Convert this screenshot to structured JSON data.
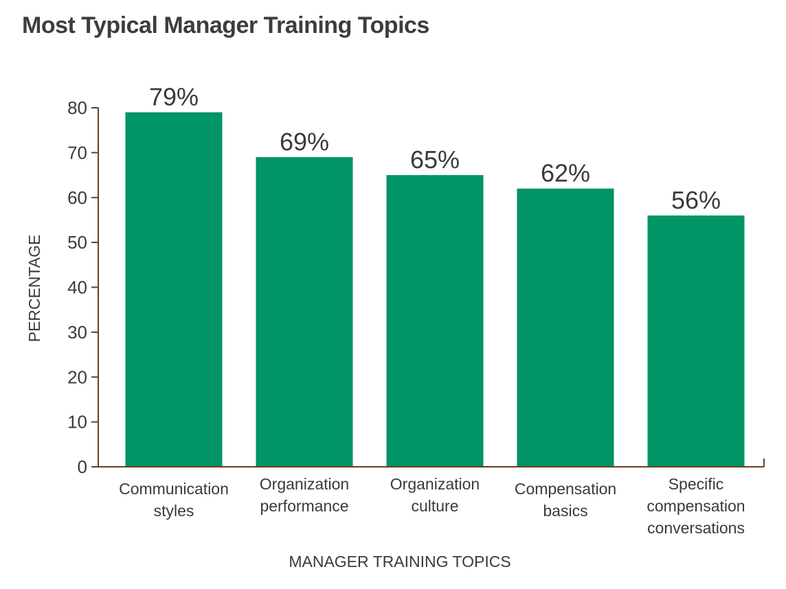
{
  "chart_data": {
    "type": "bar",
    "title": "Most Typical Manager Training Topics",
    "xlabel": "MANAGER TRAINING TOPICS",
    "ylabel": "PERCENTAGE",
    "categories": [
      [
        "Communication",
        "styles"
      ],
      [
        "Organization",
        "performance"
      ],
      [
        "Organization",
        "culture"
      ],
      [
        "Compensation",
        "basics"
      ],
      [
        "Specific",
        "compensation",
        "conversations"
      ]
    ],
    "values": [
      79,
      69,
      65,
      62,
      56
    ],
    "data_labels": [
      "79%",
      "69%",
      "65%",
      "62%",
      "56%"
    ],
    "ylim": [
      0,
      80
    ],
    "yticks": [
      0,
      10,
      20,
      30,
      40,
      50,
      60,
      70,
      80
    ],
    "grid": false,
    "legend": "none",
    "colors": {
      "bar": "#009466",
      "axis": "#6b3d1c"
    }
  }
}
